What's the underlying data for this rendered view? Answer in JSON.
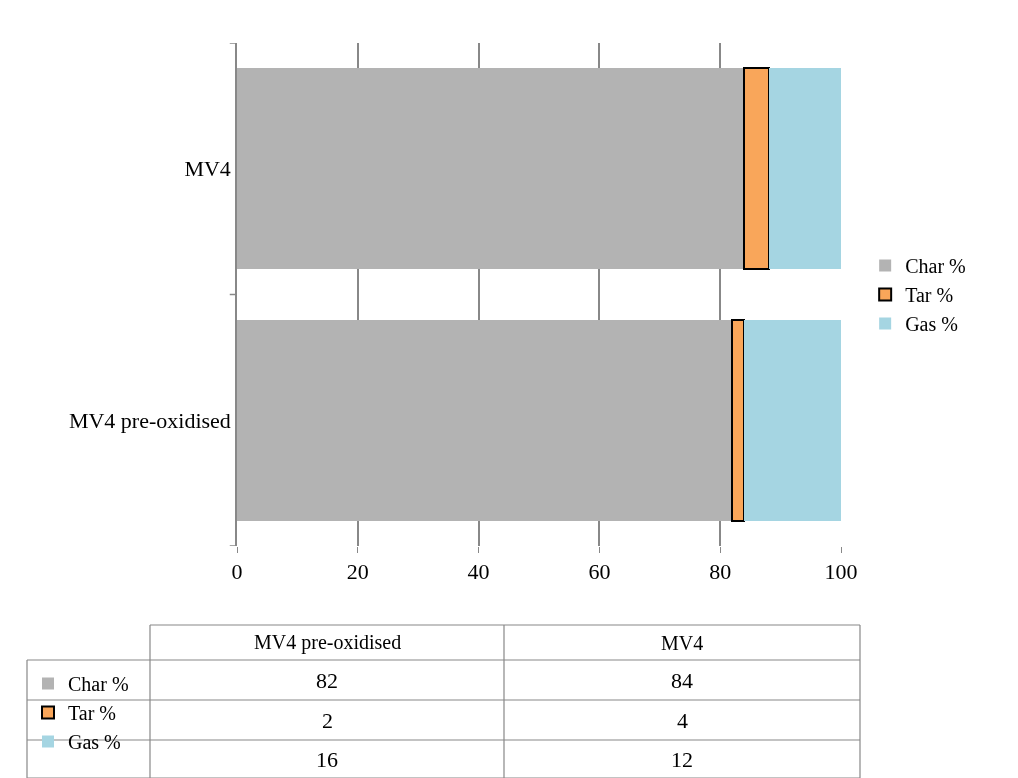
{
  "chart_data": [
    {
      "type": "bar",
      "orientation": "horizontal",
      "stacked": true,
      "categories": [
        "MV4",
        "MV4 pre-oxidised"
      ],
      "series": [
        {
          "name": "Char %",
          "color": "#b3b3b3",
          "values": [
            84,
            82
          ]
        },
        {
          "name": "Tar %",
          "color": "#f9a65a",
          "values": [
            4,
            2
          ]
        },
        {
          "name": "Gas %",
          "color": "#a5d5e2",
          "values": [
            12,
            16
          ]
        }
      ],
      "xlim": [
        0,
        100
      ],
      "xticks": [
        0,
        20,
        40,
        60,
        80,
        100
      ],
      "grid": "x",
      "legend": "right"
    },
    {
      "type": "other",
      "categories": [
        "MV4 pre-oxidised",
        "MV4"
      ],
      "series": [
        {
          "name": "Char %",
          "color": "#b3b3b3",
          "values": [
            82,
            84
          ]
        },
        {
          "name": "Tar %",
          "color": "#f9a65a",
          "values": [
            2,
            4
          ]
        },
        {
          "name": "Gas %",
          "color": "#a5d5e2",
          "values": [
            16,
            12
          ]
        }
      ],
      "data_labels": true,
      "legend": "left"
    }
  ]
}
